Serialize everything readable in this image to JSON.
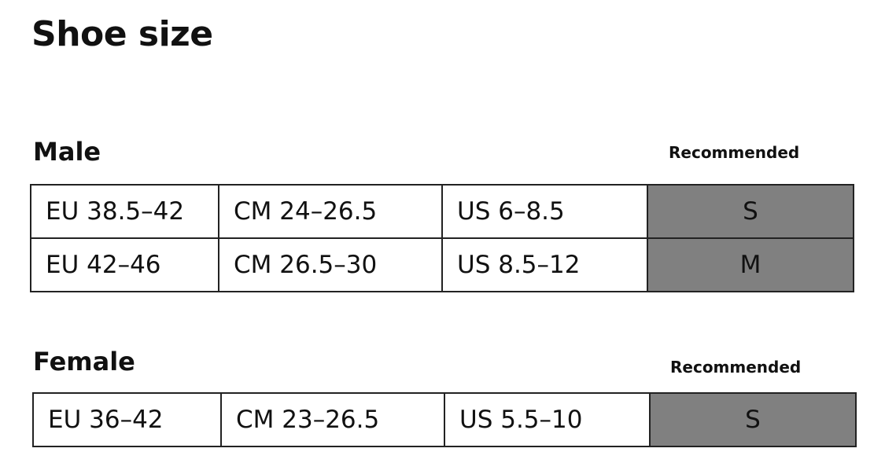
{
  "title": "Shoe size",
  "sections": [
    {
      "heading": "Male",
      "recommended_label": "Recommended",
      "rows": [
        {
          "eu": "EU 38.5–42",
          "cm": "CM 24–26.5",
          "us": "US 6–8.5",
          "size": "S"
        },
        {
          "eu": "EU 42–46",
          "cm": "CM 26.5–30",
          "us": "US 8.5–12",
          "size": "M"
        }
      ]
    },
    {
      "heading": "Female",
      "recommended_label": "Recommended",
      "rows": [
        {
          "eu": "EU 36–42",
          "cm": "CM 23–26.5",
          "us": "US 5.5–10",
          "size": "S"
        }
      ]
    }
  ],
  "colors": {
    "recommended_cell": "#808080",
    "border": "#222222"
  }
}
